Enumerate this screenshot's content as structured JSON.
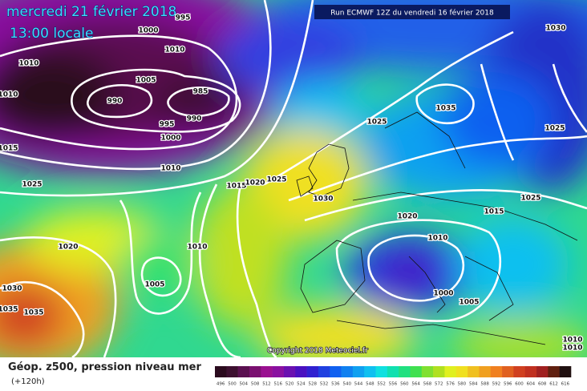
{
  "title": {
    "date": "mercredi 21 février 2018",
    "time": "13:00 locale"
  },
  "run_info": "Run ECMWF 12Z du vendredi 16 février 2018",
  "copyright": "Copyright 2018 Meteociel.fr",
  "legend": {
    "title": "Géop. z500, pression niveau mer",
    "lead": "(+120h)"
  },
  "isobar_labels": [
    "995",
    "1000",
    "1010",
    "1010",
    "1010",
    "1005",
    "990",
    "985",
    "990",
    "995",
    "1000",
    "1015",
    "1010",
    "1025",
    "1035",
    "1025",
    "1030",
    "1025",
    "1015",
    "1020",
    "1025",
    "1030",
    "1025",
    "1020",
    "1015",
    "1010",
    "1020",
    "1010",
    "1005",
    "1030",
    "1035",
    "1035",
    "1000",
    "1005",
    "1010",
    "1010"
  ],
  "colorbar": {
    "values": [
      496,
      500,
      504,
      508,
      512,
      516,
      520,
      524,
      528,
      532,
      536,
      540,
      544,
      548,
      552,
      556,
      560,
      564,
      568,
      572,
      576,
      580,
      584,
      588,
      592,
      596,
      600,
      604,
      608,
      612,
      616
    ],
    "colors": [
      "#2b0b1e",
      "#3d1030",
      "#5a1050",
      "#7a1070",
      "#9a1090",
      "#8a10a0",
      "#6a10b0",
      "#4a10c0",
      "#3020d0",
      "#2040e0",
      "#1060f0",
      "#1080f0",
      "#10a0f0",
      "#10c0f0",
      "#10e0e0",
      "#10e0b0",
      "#20e080",
      "#40e050",
      "#80e030",
      "#b0e020",
      "#e0f020",
      "#f0e020",
      "#f0c020",
      "#f0a020",
      "#f08020",
      "#e06020",
      "#d04020",
      "#c03020",
      "#a02020",
      "#602010",
      "#201010"
    ]
  }
}
